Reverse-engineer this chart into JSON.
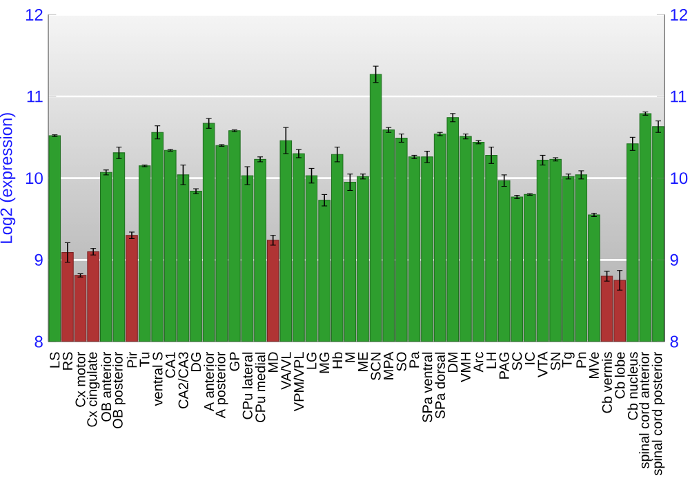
{
  "chart_data": {
    "type": "bar",
    "ylabel": "Log2 (expression)",
    "categories": [
      "LS",
      "RS",
      "Cx motor",
      "Cx cingulate",
      "OB anterior",
      "OB posterior",
      "Pir",
      "Tu",
      "ventral S",
      "CA1",
      "CA2/CA3",
      "DG",
      "A anterior",
      "A posterior",
      "GP",
      "CPu lateral",
      "CPu medial",
      "MD",
      "VA/VL",
      "VPM/VPL",
      "LG",
      "MG",
      "Hb",
      "M",
      "ME",
      "SCN",
      "MPA",
      "SO",
      "Pa",
      "SPa ventral",
      "SPa dorsal",
      "DM",
      "VMH",
      "Arc",
      "LH",
      "PAG",
      "SC",
      "IC",
      "VTA",
      "SN",
      "Tg",
      "Pn",
      "MVe",
      "Cb vermis",
      "Cb lobe",
      "Cb nucleus",
      "spinal cord anterior",
      "spinal cord posterior"
    ],
    "values": [
      10.52,
      9.09,
      8.81,
      9.1,
      10.07,
      10.31,
      9.3,
      10.15,
      10.56,
      10.34,
      10.04,
      9.84,
      10.67,
      10.4,
      10.58,
      10.03,
      10.23,
      9.24,
      10.46,
      10.3,
      10.03,
      9.73,
      10.29,
      9.95,
      10.02,
      11.27,
      10.59,
      10.49,
      10.26,
      10.26,
      10.54,
      10.74,
      10.51,
      10.44,
      10.28,
      9.97,
      9.77,
      9.8,
      10.22,
      10.23,
      10.02,
      10.04,
      9.55,
      8.8,
      8.75,
      10.42,
      10.79,
      10.63
    ],
    "errors": [
      0.01,
      0.12,
      0.02,
      0.04,
      0.03,
      0.07,
      0.04,
      0.01,
      0.08,
      0.01,
      0.12,
      0.03,
      0.06,
      0.01,
      0.01,
      0.11,
      0.03,
      0.06,
      0.16,
      0.05,
      0.09,
      0.07,
      0.09,
      0.1,
      0.03,
      0.1,
      0.03,
      0.05,
      0.02,
      0.07,
      0.02,
      0.05,
      0.03,
      0.02,
      0.1,
      0.07,
      0.02,
      0.01,
      0.06,
      0.02,
      0.03,
      0.05,
      0.02,
      0.06,
      0.12,
      0.08,
      0.02,
      0.07
    ],
    "colors": [
      "#2e9e2e",
      "#b03434",
      "#b03434",
      "#b03434",
      "#2e9e2e",
      "#2e9e2e",
      "#b03434",
      "#2e9e2e",
      "#2e9e2e",
      "#2e9e2e",
      "#2e9e2e",
      "#2e9e2e",
      "#2e9e2e",
      "#2e9e2e",
      "#2e9e2e",
      "#2e9e2e",
      "#2e9e2e",
      "#b03434",
      "#2e9e2e",
      "#2e9e2e",
      "#2e9e2e",
      "#2e9e2e",
      "#2e9e2e",
      "#2e9e2e",
      "#2e9e2e",
      "#2e9e2e",
      "#2e9e2e",
      "#2e9e2e",
      "#2e9e2e",
      "#2e9e2e",
      "#2e9e2e",
      "#2e9e2e",
      "#2e9e2e",
      "#2e9e2e",
      "#2e9e2e",
      "#2e9e2e",
      "#2e9e2e",
      "#2e9e2e",
      "#2e9e2e",
      "#2e9e2e",
      "#2e9e2e",
      "#2e9e2e",
      "#2e9e2e",
      "#b03434",
      "#b03434",
      "#2e9e2e",
      "#2e9e2e",
      "#2e9e2e"
    ],
    "ylim": [
      8,
      12
    ],
    "yticks": [
      8,
      9,
      10,
      11,
      12
    ],
    "y2lim": [
      8,
      12
    ],
    "y2ticks": [
      8,
      9,
      10,
      11,
      12
    ],
    "grid": "y"
  }
}
